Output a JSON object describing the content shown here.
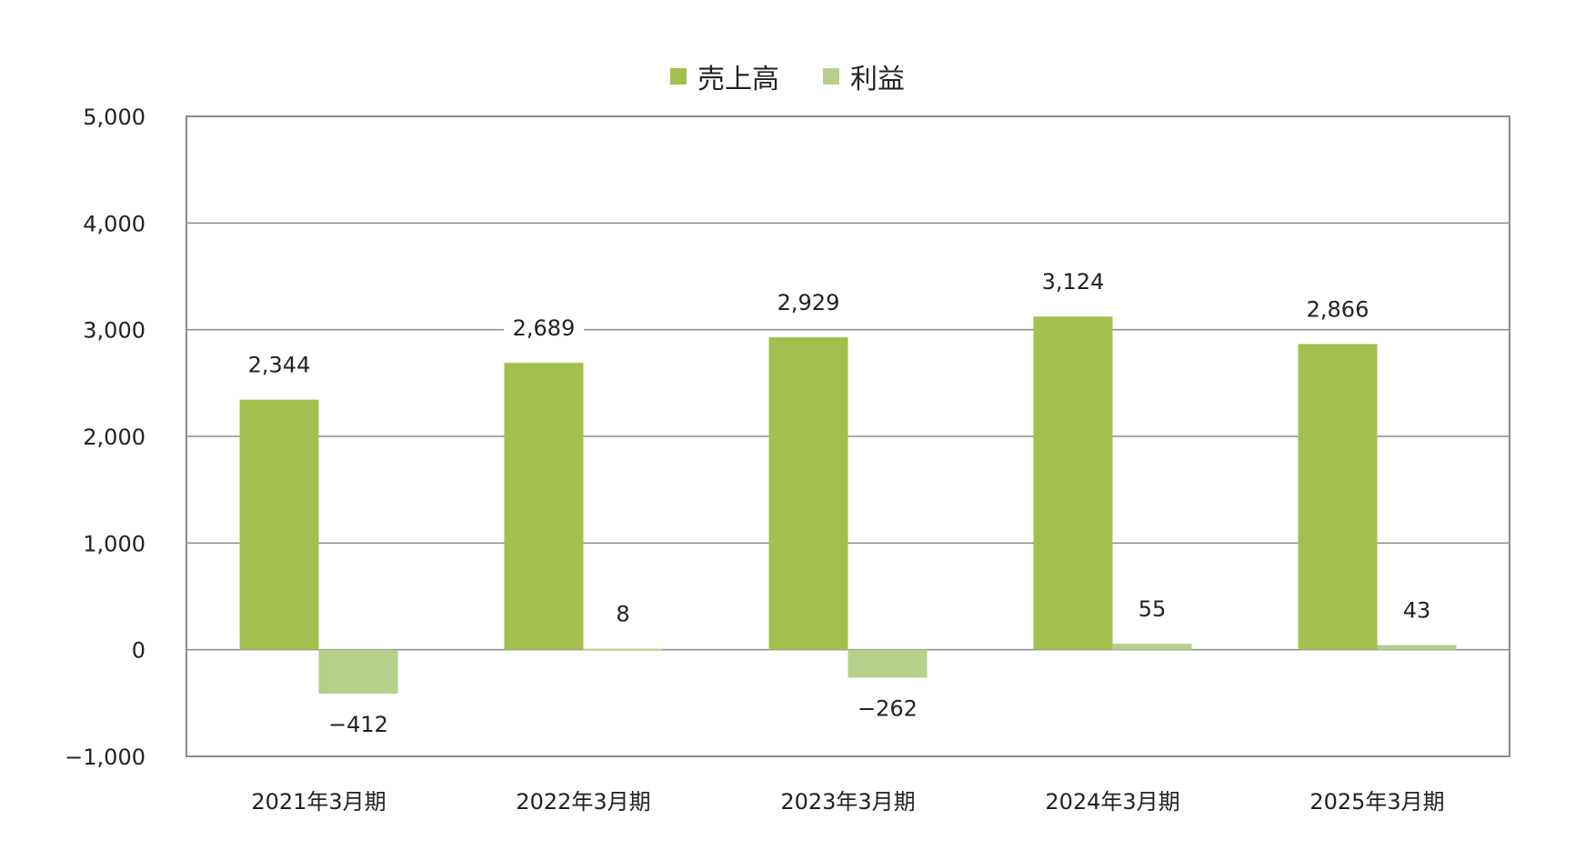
{
  "chart_data": {
    "type": "bar",
    "categories": [
      "2021年3月期",
      "2022年3月期",
      "2023年3月期",
      "2024年3月期",
      "2025年3月期"
    ],
    "series": [
      {
        "name": "売上高",
        "values": [
          2344,
          2689,
          2929,
          3124,
          2866
        ],
        "labels": [
          "2,344",
          "2,689",
          "2,929",
          "3,124",
          "2,866"
        ],
        "color": "#a3bf4e"
      },
      {
        "name": "利益",
        "values": [
          -412,
          8,
          -262,
          55,
          43
        ],
        "labels": [
          "−412",
          "8",
          "−262",
          "55",
          "43"
        ],
        "color": "#b6cf8b"
      }
    ],
    "ylim": [
      -1000,
      5000
    ],
    "yticks": [
      5000,
      4000,
      3000,
      2000,
      1000,
      0,
      -1000
    ],
    "ytick_labels": [
      "5,000",
      "4,000",
      "3,000",
      "2,000",
      "1,000",
      "0",
      "−1,000"
    ],
    "grid": true,
    "legend_position": "top-center"
  }
}
